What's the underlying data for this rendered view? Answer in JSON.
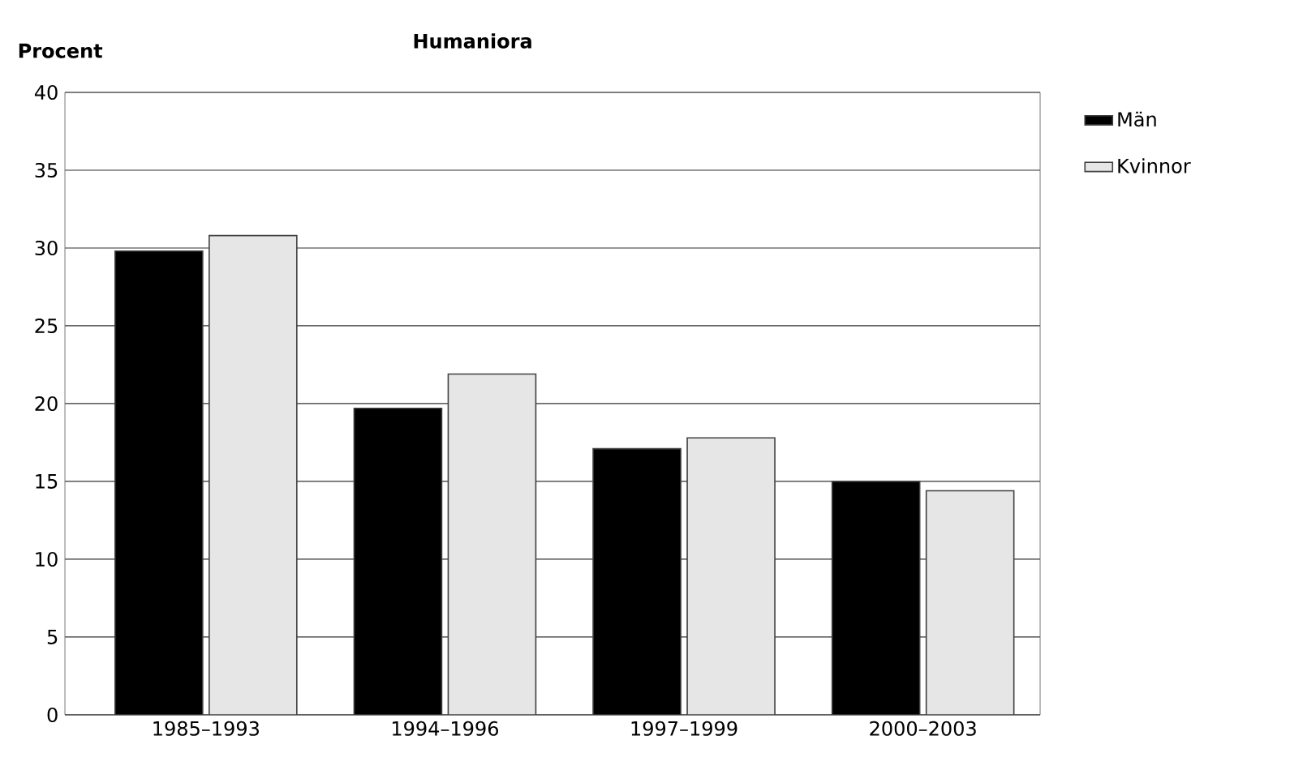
{
  "chart_data": {
    "type": "bar",
    "title": "Humaniora",
    "ylabel": "Procent",
    "categories": [
      "1985–1993",
      "1994–1996",
      "1997–1999",
      "2000–2003"
    ],
    "series": [
      {
        "name": "Män",
        "color": "#000000",
        "values": [
          29.8,
          19.7,
          17.1,
          15.0
        ]
      },
      {
        "name": "Kvinnor",
        "color": "#e6e6e6",
        "values": [
          30.8,
          21.9,
          17.8,
          14.4
        ]
      }
    ],
    "ylim": [
      0,
      40
    ],
    "yticks": [
      0,
      5,
      10,
      15,
      20,
      25,
      30,
      35,
      40
    ],
    "grid": "y",
    "legend": "top right"
  }
}
